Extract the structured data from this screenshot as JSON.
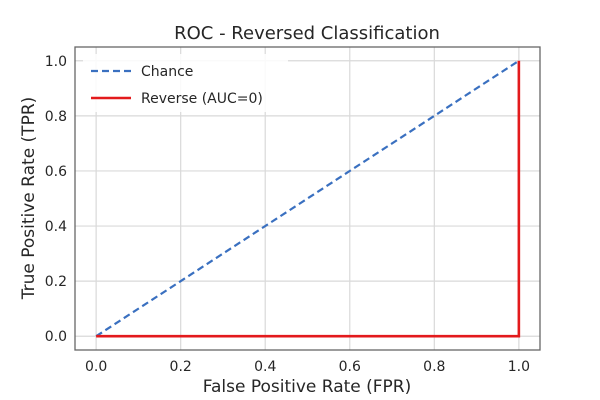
{
  "chart_data": {
    "type": "line",
    "title": "ROC - Reversed Classification",
    "xlabel": "False Positive Rate (FPR)",
    "ylabel": "True Positive Rate (TPR)",
    "xlim": [
      -0.05,
      1.05
    ],
    "ylim": [
      -0.05,
      1.05
    ],
    "xticks": [
      0.0,
      0.2,
      0.4,
      0.6,
      0.8,
      1.0
    ],
    "yticks": [
      0.0,
      0.2,
      0.4,
      0.6,
      0.8,
      1.0
    ],
    "x_tick_labels": [
      "0.0",
      "0.2",
      "0.4",
      "0.6",
      "0.8",
      "1.0"
    ],
    "y_tick_labels": [
      "0.0",
      "0.2",
      "0.4",
      "0.6",
      "0.8",
      "1.0"
    ],
    "grid": true,
    "legend_position": "top-left",
    "series": [
      {
        "name": "Chance",
        "style": "dashed",
        "color": "#3a70c0",
        "x": [
          0,
          1
        ],
        "y": [
          0,
          1
        ]
      },
      {
        "name": "Reverse (AUC=0)",
        "style": "solid",
        "color": "#e31a1c",
        "x": [
          0,
          1,
          1
        ],
        "y": [
          0,
          0,
          1
        ]
      }
    ]
  }
}
